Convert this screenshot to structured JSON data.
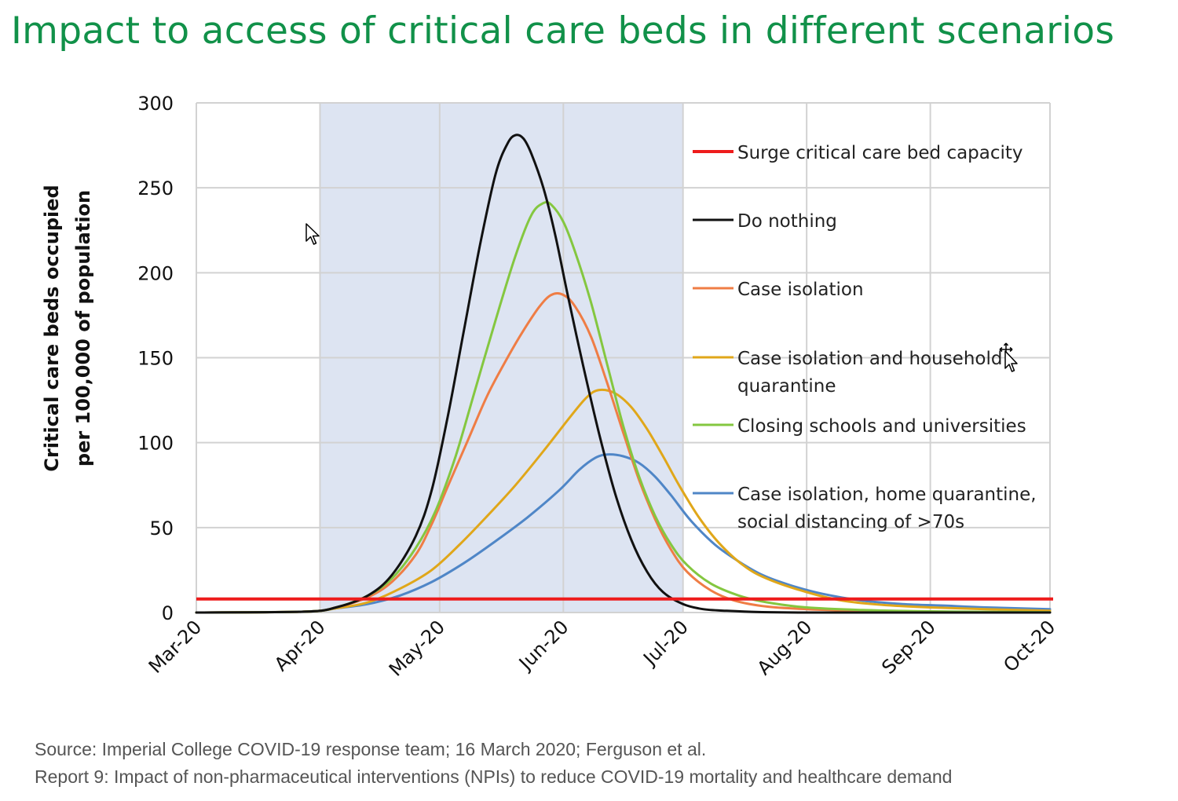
{
  "title": "Impact to access of critical care beds in different scenarios",
  "source": {
    "line1": "Source: Imperial College COVID-19 response team; 16 March 2020; Ferguson et al.",
    "line2": "Report 9: Impact of non-pharmaceutical interventions (NPIs) to reduce COVID-19 mortality and healthcare demand"
  },
  "chart_data": {
    "type": "line",
    "title": "",
    "xlabel": "",
    "ylabel": [
      "Critical care beds occupied",
      "per 100,000 of population"
    ],
    "ylim": [
      0,
      300
    ],
    "yticks": [
      0,
      50,
      100,
      150,
      200,
      250,
      300
    ],
    "xlim": [
      "2020-03-01",
      "2020-10-01"
    ],
    "xticks": [
      "2020-03-01",
      "2020-04-01",
      "2020-05-01",
      "2020-06-01",
      "2020-07-01",
      "2020-08-01",
      "2020-09-01",
      "2020-10-01"
    ],
    "xtick_labels": [
      "Mar-20",
      "Apr-20",
      "May-20",
      "Jun-20",
      "Jul-20",
      "Aug-20",
      "Sep-20",
      "Oct-20"
    ],
    "grid": true,
    "shaded_region": {
      "from": "2020-04-01",
      "to": "2020-07-01",
      "color": "#dde4f2"
    },
    "legend_position": "right",
    "reference_line": {
      "name": "Surge critical care bed capacity",
      "y": 8,
      "color": "#ee1c1c"
    },
    "series": [
      {
        "name": "Do nothing",
        "color": "#111111",
        "x": [
          "2020-03-01",
          "2020-03-28",
          "2020-04-05",
          "2020-04-13",
          "2020-04-19",
          "2020-04-25",
          "2020-04-29",
          "2020-05-03",
          "2020-05-07",
          "2020-05-11",
          "2020-05-15",
          "2020-05-18",
          "2020-05-20",
          "2020-05-22",
          "2020-05-24",
          "2020-05-27",
          "2020-05-30",
          "2020-06-02",
          "2020-06-06",
          "2020-06-10",
          "2020-06-14",
          "2020-06-18",
          "2020-06-22",
          "2020-06-26",
          "2020-07-01",
          "2020-07-06",
          "2020-07-12",
          "2020-07-20",
          "2020-08-01",
          "2020-09-01",
          "2020-10-01"
        ],
        "values": [
          0,
          0.5,
          3,
          10,
          22,
          45,
          72,
          115,
          165,
          215,
          258,
          276,
          281,
          279,
          270,
          250,
          222,
          188,
          145,
          105,
          70,
          43,
          24,
          12,
          5,
          2,
          1,
          0.3,
          0,
          0,
          0
        ]
      },
      {
        "name": "Case isolation",
        "color": "#ef7d45",
        "x": [
          "2020-03-01",
          "2020-03-28",
          "2020-04-05",
          "2020-04-13",
          "2020-04-19",
          "2020-04-25",
          "2020-04-29",
          "2020-05-03",
          "2020-05-08",
          "2020-05-13",
          "2020-05-18",
          "2020-05-22",
          "2020-05-26",
          "2020-05-29",
          "2020-06-01",
          "2020-06-04",
          "2020-06-08",
          "2020-06-12",
          "2020-06-16",
          "2020-06-20",
          "2020-06-24",
          "2020-06-28",
          "2020-07-02",
          "2020-07-08",
          "2020-07-14",
          "2020-07-22",
          "2020-08-01",
          "2020-08-15",
          "2020-09-01",
          "2020-10-01"
        ],
        "values": [
          0,
          0.5,
          3,
          9,
          18,
          34,
          52,
          74,
          101,
          128,
          150,
          166,
          180,
          187,
          187,
          180,
          162,
          135,
          106,
          78,
          55,
          37,
          24,
          13,
          7,
          3.5,
          2,
          1,
          0.5,
          0.2
        ]
      },
      {
        "name": "Case isolation and household quarantine",
        "color": "#e0a71a",
        "x": [
          "2020-03-01",
          "2020-03-28",
          "2020-04-05",
          "2020-04-13",
          "2020-04-21",
          "2020-04-29",
          "2020-05-06",
          "2020-05-13",
          "2020-05-20",
          "2020-05-27",
          "2020-06-03",
          "2020-06-07",
          "2020-06-10",
          "2020-06-14",
          "2020-06-18",
          "2020-06-22",
          "2020-06-26",
          "2020-06-30",
          "2020-07-05",
          "2020-07-10",
          "2020-07-16",
          "2020-07-22",
          "2020-08-01",
          "2020-08-10",
          "2020-08-20",
          "2020-09-01",
          "2020-09-15",
          "2020-10-01"
        ],
        "values": [
          0,
          0.5,
          2.5,
          6,
          14,
          25,
          40,
          57,
          75,
          95,
          116,
          127,
          131,
          129,
          121,
          108,
          92,
          75,
          56,
          41,
          28,
          20,
          12,
          7,
          4.5,
          3,
          2,
          1
        ]
      },
      {
        "name": "Closing schools and universities",
        "color": "#84c740",
        "x": [
          "2020-03-01",
          "2020-03-28",
          "2020-04-05",
          "2020-04-13",
          "2020-04-19",
          "2020-04-25",
          "2020-04-30",
          "2020-05-05",
          "2020-05-10",
          "2020-05-15",
          "2020-05-20",
          "2020-05-24",
          "2020-05-27",
          "2020-05-29",
          "2020-06-01",
          "2020-06-04",
          "2020-06-08",
          "2020-06-12",
          "2020-06-16",
          "2020-06-20",
          "2020-06-24",
          "2020-06-28",
          "2020-07-02",
          "2020-07-08",
          "2020-07-15",
          "2020-07-22",
          "2020-08-01",
          "2020-08-15",
          "2020-09-01",
          "2020-10-01"
        ],
        "values": [
          0,
          0.5,
          3,
          10,
          20,
          38,
          60,
          92,
          132,
          172,
          210,
          234,
          241,
          240,
          230,
          212,
          182,
          146,
          110,
          80,
          57,
          40,
          28,
          17,
          10,
          6,
          3,
          1.5,
          0.7,
          0.2
        ]
      },
      {
        "name": "Case isolation, home quarantine, social distancing of >70s",
        "color": "#4f86c7",
        "x": [
          "2020-03-01",
          "2020-03-28",
          "2020-04-05",
          "2020-04-13",
          "2020-04-21",
          "2020-04-29",
          "2020-05-07",
          "2020-05-15",
          "2020-05-23",
          "2020-05-31",
          "2020-06-05",
          "2020-06-09",
          "2020-06-12",
          "2020-06-16",
          "2020-06-20",
          "2020-06-24",
          "2020-06-28",
          "2020-07-03",
          "2020-07-09",
          "2020-07-15",
          "2020-07-21",
          "2020-07-28",
          "2020-08-05",
          "2020-08-15",
          "2020-08-25",
          "2020-09-05",
          "2020-09-15",
          "2020-10-01"
        ],
        "values": [
          0,
          0.5,
          2.5,
          5,
          10,
          18,
          29,
          42,
          56,
          72,
          84,
          91,
          93,
          92,
          88,
          80,
          69,
          54,
          40,
          30,
          22,
          16,
          11,
          7,
          5,
          4,
          3,
          2
        ]
      }
    ]
  }
}
